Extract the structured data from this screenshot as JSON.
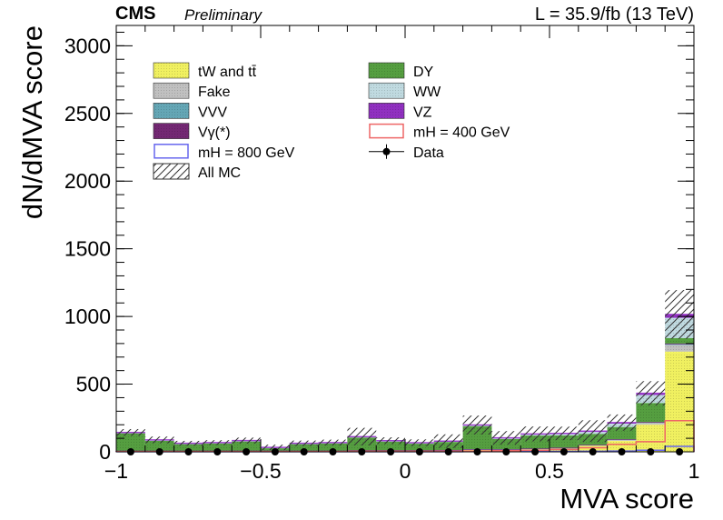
{
  "header": {
    "cms": "CMS",
    "preliminary": "Preliminary",
    "lumi": "L = 35.9/fb (13 TeV)"
  },
  "chart_data": {
    "type": "bar",
    "stacked": true,
    "xlabel": "MVA score",
    "ylabel": "dN/dMVA score",
    "xlim": [
      -1,
      1
    ],
    "ylim": [
      0,
      3150
    ],
    "x_ticks": [
      "−1",
      "−0.5",
      "0",
      "0.5",
      "1"
    ],
    "y_ticks": [
      "0",
      "500",
      "1000",
      "1500",
      "2000",
      "2500",
      "3000"
    ],
    "bin_edges": [
      -1.0,
      -0.9,
      -0.8,
      -0.7,
      -0.6,
      -0.5,
      -0.4,
      -0.3,
      -0.2,
      -0.1,
      0.0,
      0.1,
      0.2,
      0.3,
      0.4,
      0.5,
      0.6,
      0.7,
      0.8,
      0.9,
      1.0
    ],
    "legend_position": "top-left",
    "series": [
      {
        "name": "tW and tt̄",
        "color": "#ffff66",
        "values": [
          5,
          5,
          5,
          5,
          5,
          5,
          5,
          5,
          8,
          8,
          8,
          10,
          15,
          15,
          20,
          25,
          45,
          80,
          200,
          740
        ]
      },
      {
        "name": "Fake",
        "color": "#cccccc",
        "values": [
          2,
          2,
          2,
          2,
          2,
          2,
          2,
          2,
          2,
          2,
          2,
          2,
          3,
          3,
          3,
          4,
          5,
          10,
          15,
          50
        ]
      },
      {
        "name": "VVV",
        "color": "#6ab0c0",
        "values": [
          1,
          1,
          1,
          1,
          1,
          1,
          1,
          1,
          1,
          1,
          1,
          1,
          1,
          1,
          1,
          1,
          1,
          2,
          3,
          5
        ]
      },
      {
        "name": "Vγ(*)",
        "color": "#7a2a7a",
        "values": [
          1,
          1,
          1,
          1,
          1,
          1,
          1,
          1,
          1,
          1,
          1,
          1,
          1,
          1,
          1,
          1,
          1,
          1,
          2,
          5
        ]
      },
      {
        "name": "DY",
        "color": "#5aa844",
        "values": [
          130,
          75,
          50,
          55,
          70,
          20,
          50,
          55,
          95,
          65,
          50,
          60,
          170,
          75,
          95,
          90,
          80,
          90,
          140,
          40
        ]
      },
      {
        "name": "WW",
        "color": "#cce8ee",
        "values": [
          2,
          2,
          2,
          2,
          2,
          2,
          2,
          2,
          3,
          3,
          3,
          3,
          5,
          5,
          8,
          10,
          15,
          25,
          60,
          150
        ]
      },
      {
        "name": "VZ",
        "color": "#9933cc",
        "values": [
          2,
          2,
          2,
          2,
          2,
          2,
          2,
          2,
          2,
          2,
          2,
          2,
          3,
          3,
          4,
          5,
          6,
          8,
          12,
          25
        ]
      }
    ],
    "all_mc_uncertainty": {
      "name": "All MC",
      "values": [
        25,
        25,
        18,
        18,
        22,
        20,
        20,
        22,
        65,
        25,
        25,
        50,
        70,
        50,
        55,
        50,
        80,
        60,
        90,
        180
      ]
    },
    "signal": [
      {
        "name": "mH = 800 GeV",
        "color": "#6666ee",
        "values": [
          1,
          1,
          1,
          1,
          1,
          1,
          1,
          1,
          1,
          1,
          1,
          1,
          2,
          2,
          2,
          3,
          4,
          6,
          12,
          40
        ]
      },
      {
        "name": "mH = 400 GeV",
        "color": "#ee6666",
        "values": [
          2,
          2,
          2,
          2,
          2,
          2,
          2,
          2,
          3,
          3,
          3,
          4,
          6,
          8,
          12,
          18,
          30,
          55,
          75,
          230
        ]
      }
    ],
    "data": {
      "name": "Data",
      "values": [
        0,
        0,
        0,
        0,
        0,
        0,
        0,
        0,
        0,
        0,
        0,
        0,
        0,
        0,
        0,
        0,
        0,
        0,
        0,
        0
      ]
    }
  }
}
